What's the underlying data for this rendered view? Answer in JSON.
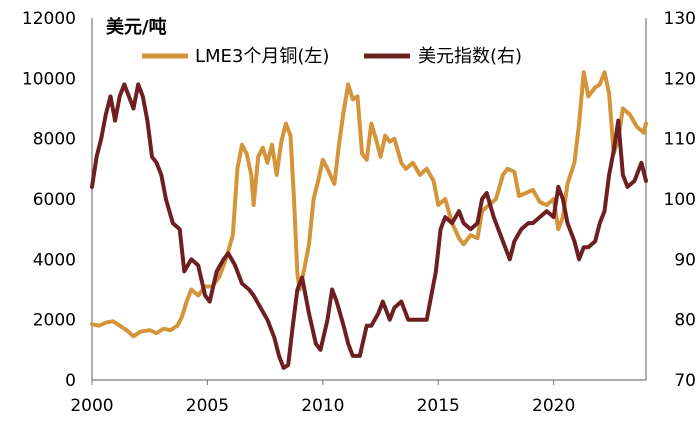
{
  "chart_data": {
    "type": "line",
    "unit_label": "美元/吨",
    "x_ticks": [
      "2000",
      "2005",
      "2010",
      "2015",
      "2020"
    ],
    "x_range": [
      2000,
      2024
    ],
    "y_left": {
      "range": [
        0,
        12000
      ],
      "ticks": [
        "0",
        "2000",
        "4000",
        "6000",
        "8000",
        "10000",
        "12000"
      ]
    },
    "y_right": {
      "range": [
        70,
        130
      ],
      "ticks": [
        "70",
        "80",
        "90",
        "100",
        "110",
        "120",
        "130"
      ]
    },
    "series": [
      {
        "name": "LME3个月铜(左)",
        "axis": "left",
        "color": "#d4943a",
        "points": [
          [
            2000.0,
            1850
          ],
          [
            2000.3,
            1800
          ],
          [
            2000.6,
            1900
          ],
          [
            2000.9,
            1950
          ],
          [
            2001.2,
            1800
          ],
          [
            2001.5,
            1650
          ],
          [
            2001.8,
            1450
          ],
          [
            2002.1,
            1600
          ],
          [
            2002.5,
            1650
          ],
          [
            2002.8,
            1550
          ],
          [
            2003.1,
            1700
          ],
          [
            2003.4,
            1650
          ],
          [
            2003.7,
            1800
          ],
          [
            2003.9,
            2100
          ],
          [
            2004.1,
            2600
          ],
          [
            2004.3,
            3000
          ],
          [
            2004.6,
            2800
          ],
          [
            2004.9,
            3100
          ],
          [
            2005.2,
            3100
          ],
          [
            2005.5,
            3400
          ],
          [
            2005.8,
            4000
          ],
          [
            2006.1,
            4800
          ],
          [
            2006.3,
            7000
          ],
          [
            2006.5,
            7800
          ],
          [
            2006.7,
            7500
          ],
          [
            2006.9,
            6800
          ],
          [
            2007.0,
            5800
          ],
          [
            2007.2,
            7400
          ],
          [
            2007.4,
            7700
          ],
          [
            2007.6,
            7200
          ],
          [
            2007.8,
            7800
          ],
          [
            2008.0,
            6800
          ],
          [
            2008.2,
            7900
          ],
          [
            2008.4,
            8500
          ],
          [
            2008.6,
            8100
          ],
          [
            2008.75,
            6000
          ],
          [
            2008.9,
            3500
          ],
          [
            2009.0,
            3000
          ],
          [
            2009.2,
            3700
          ],
          [
            2009.4,
            4500
          ],
          [
            2009.6,
            6000
          ],
          [
            2009.8,
            6600
          ],
          [
            2010.0,
            7300
          ],
          [
            2010.2,
            7000
          ],
          [
            2010.5,
            6500
          ],
          [
            2010.7,
            7800
          ],
          [
            2010.9,
            8900
          ],
          [
            2011.1,
            9800
          ],
          [
            2011.3,
            9300
          ],
          [
            2011.5,
            9400
          ],
          [
            2011.7,
            7500
          ],
          [
            2011.9,
            7300
          ],
          [
            2012.1,
            8500
          ],
          [
            2012.3,
            8000
          ],
          [
            2012.5,
            7400
          ],
          [
            2012.7,
            8100
          ],
          [
            2012.9,
            7900
          ],
          [
            2013.1,
            8000
          ],
          [
            2013.4,
            7200
          ],
          [
            2013.6,
            7000
          ],
          [
            2013.9,
            7200
          ],
          [
            2014.2,
            6800
          ],
          [
            2014.5,
            7000
          ],
          [
            2014.8,
            6600
          ],
          [
            2015.0,
            5800
          ],
          [
            2015.3,
            6000
          ],
          [
            2015.6,
            5200
          ],
          [
            2015.9,
            4700
          ],
          [
            2016.1,
            4500
          ],
          [
            2016.4,
            4800
          ],
          [
            2016.7,
            4700
          ],
          [
            2016.9,
            5600
          ],
          [
            2017.2,
            5800
          ],
          [
            2017.5,
            6000
          ],
          [
            2017.8,
            6800
          ],
          [
            2018.0,
            7000
          ],
          [
            2018.3,
            6900
          ],
          [
            2018.5,
            6100
          ],
          [
            2018.8,
            6200
          ],
          [
            2019.1,
            6300
          ],
          [
            2019.4,
            5900
          ],
          [
            2019.7,
            5800
          ],
          [
            2020.0,
            6000
          ],
          [
            2020.2,
            5000
          ],
          [
            2020.4,
            5400
          ],
          [
            2020.6,
            6500
          ],
          [
            2020.9,
            7200
          ],
          [
            2021.1,
            8500
          ],
          [
            2021.3,
            10200
          ],
          [
            2021.5,
            9400
          ],
          [
            2021.8,
            9700
          ],
          [
            2022.0,
            9800
          ],
          [
            2022.2,
            10200
          ],
          [
            2022.4,
            9500
          ],
          [
            2022.6,
            7500
          ],
          [
            2022.8,
            8000
          ],
          [
            2023.0,
            9000
          ],
          [
            2023.3,
            8800
          ],
          [
            2023.6,
            8400
          ],
          [
            2023.9,
            8200
          ],
          [
            2024.0,
            8500
          ]
        ]
      },
      {
        "name": "美元指数(右)",
        "axis": "right",
        "color": "#6e1f22",
        "points": [
          [
            2000.0,
            102
          ],
          [
            2000.2,
            107
          ],
          [
            2000.4,
            110
          ],
          [
            2000.6,
            114
          ],
          [
            2000.8,
            117
          ],
          [
            2001.0,
            113
          ],
          [
            2001.2,
            117
          ],
          [
            2001.4,
            119
          ],
          [
            2001.6,
            117
          ],
          [
            2001.8,
            115
          ],
          [
            2002.0,
            119
          ],
          [
            2002.2,
            117
          ],
          [
            2002.4,
            113
          ],
          [
            2002.6,
            107
          ],
          [
            2002.8,
            106
          ],
          [
            2003.0,
            104
          ],
          [
            2003.2,
            100
          ],
          [
            2003.5,
            96
          ],
          [
            2003.8,
            95
          ],
          [
            2004.0,
            88
          ],
          [
            2004.3,
            90
          ],
          [
            2004.6,
            89
          ],
          [
            2004.9,
            84
          ],
          [
            2005.1,
            83
          ],
          [
            2005.4,
            88
          ],
          [
            2005.7,
            90
          ],
          [
            2005.9,
            91
          ],
          [
            2006.2,
            89
          ],
          [
            2006.5,
            86
          ],
          [
            2006.8,
            85
          ],
          [
            2007.0,
            84
          ],
          [
            2007.3,
            82
          ],
          [
            2007.6,
            80
          ],
          [
            2007.9,
            77
          ],
          [
            2008.1,
            74
          ],
          [
            2008.3,
            72
          ],
          [
            2008.5,
            72.5
          ],
          [
            2008.7,
            79
          ],
          [
            2008.9,
            85
          ],
          [
            2009.1,
            87
          ],
          [
            2009.4,
            81
          ],
          [
            2009.7,
            76
          ],
          [
            2009.9,
            75
          ],
          [
            2010.2,
            80
          ],
          [
            2010.4,
            85
          ],
          [
            2010.6,
            83
          ],
          [
            2010.9,
            79
          ],
          [
            2011.1,
            76
          ],
          [
            2011.3,
            74
          ],
          [
            2011.6,
            74
          ],
          [
            2011.9,
            79
          ],
          [
            2012.1,
            79
          ],
          [
            2012.4,
            81
          ],
          [
            2012.6,
            83
          ],
          [
            2012.9,
            80
          ],
          [
            2013.1,
            82
          ],
          [
            2013.4,
            83
          ],
          [
            2013.7,
            80
          ],
          [
            2013.9,
            80
          ],
          [
            2014.2,
            80
          ],
          [
            2014.5,
            80
          ],
          [
            2014.7,
            84
          ],
          [
            2014.9,
            88
          ],
          [
            2015.1,
            95
          ],
          [
            2015.3,
            97
          ],
          [
            2015.6,
            96
          ],
          [
            2015.9,
            98
          ],
          [
            2016.1,
            96
          ],
          [
            2016.4,
            95
          ],
          [
            2016.7,
            96
          ],
          [
            2016.9,
            100
          ],
          [
            2017.1,
            101
          ],
          [
            2017.4,
            97
          ],
          [
            2017.7,
            94
          ],
          [
            2017.9,
            92
          ],
          [
            2018.1,
            90
          ],
          [
            2018.3,
            93
          ],
          [
            2018.6,
            95
          ],
          [
            2018.9,
            96
          ],
          [
            2019.1,
            96
          ],
          [
            2019.4,
            97
          ],
          [
            2019.7,
            98
          ],
          [
            2020.0,
            97
          ],
          [
            2020.2,
            102
          ],
          [
            2020.4,
            100
          ],
          [
            2020.6,
            96
          ],
          [
            2020.9,
            93
          ],
          [
            2021.1,
            90
          ],
          [
            2021.3,
            92
          ],
          [
            2021.5,
            92
          ],
          [
            2021.8,
            93
          ],
          [
            2022.0,
            96
          ],
          [
            2022.2,
            98
          ],
          [
            2022.4,
            104
          ],
          [
            2022.6,
            108
          ],
          [
            2022.8,
            113
          ],
          [
            2023.0,
            104
          ],
          [
            2023.2,
            102
          ],
          [
            2023.5,
            103
          ],
          [
            2023.8,
            106
          ],
          [
            2024.0,
            103
          ]
        ]
      }
    ]
  }
}
